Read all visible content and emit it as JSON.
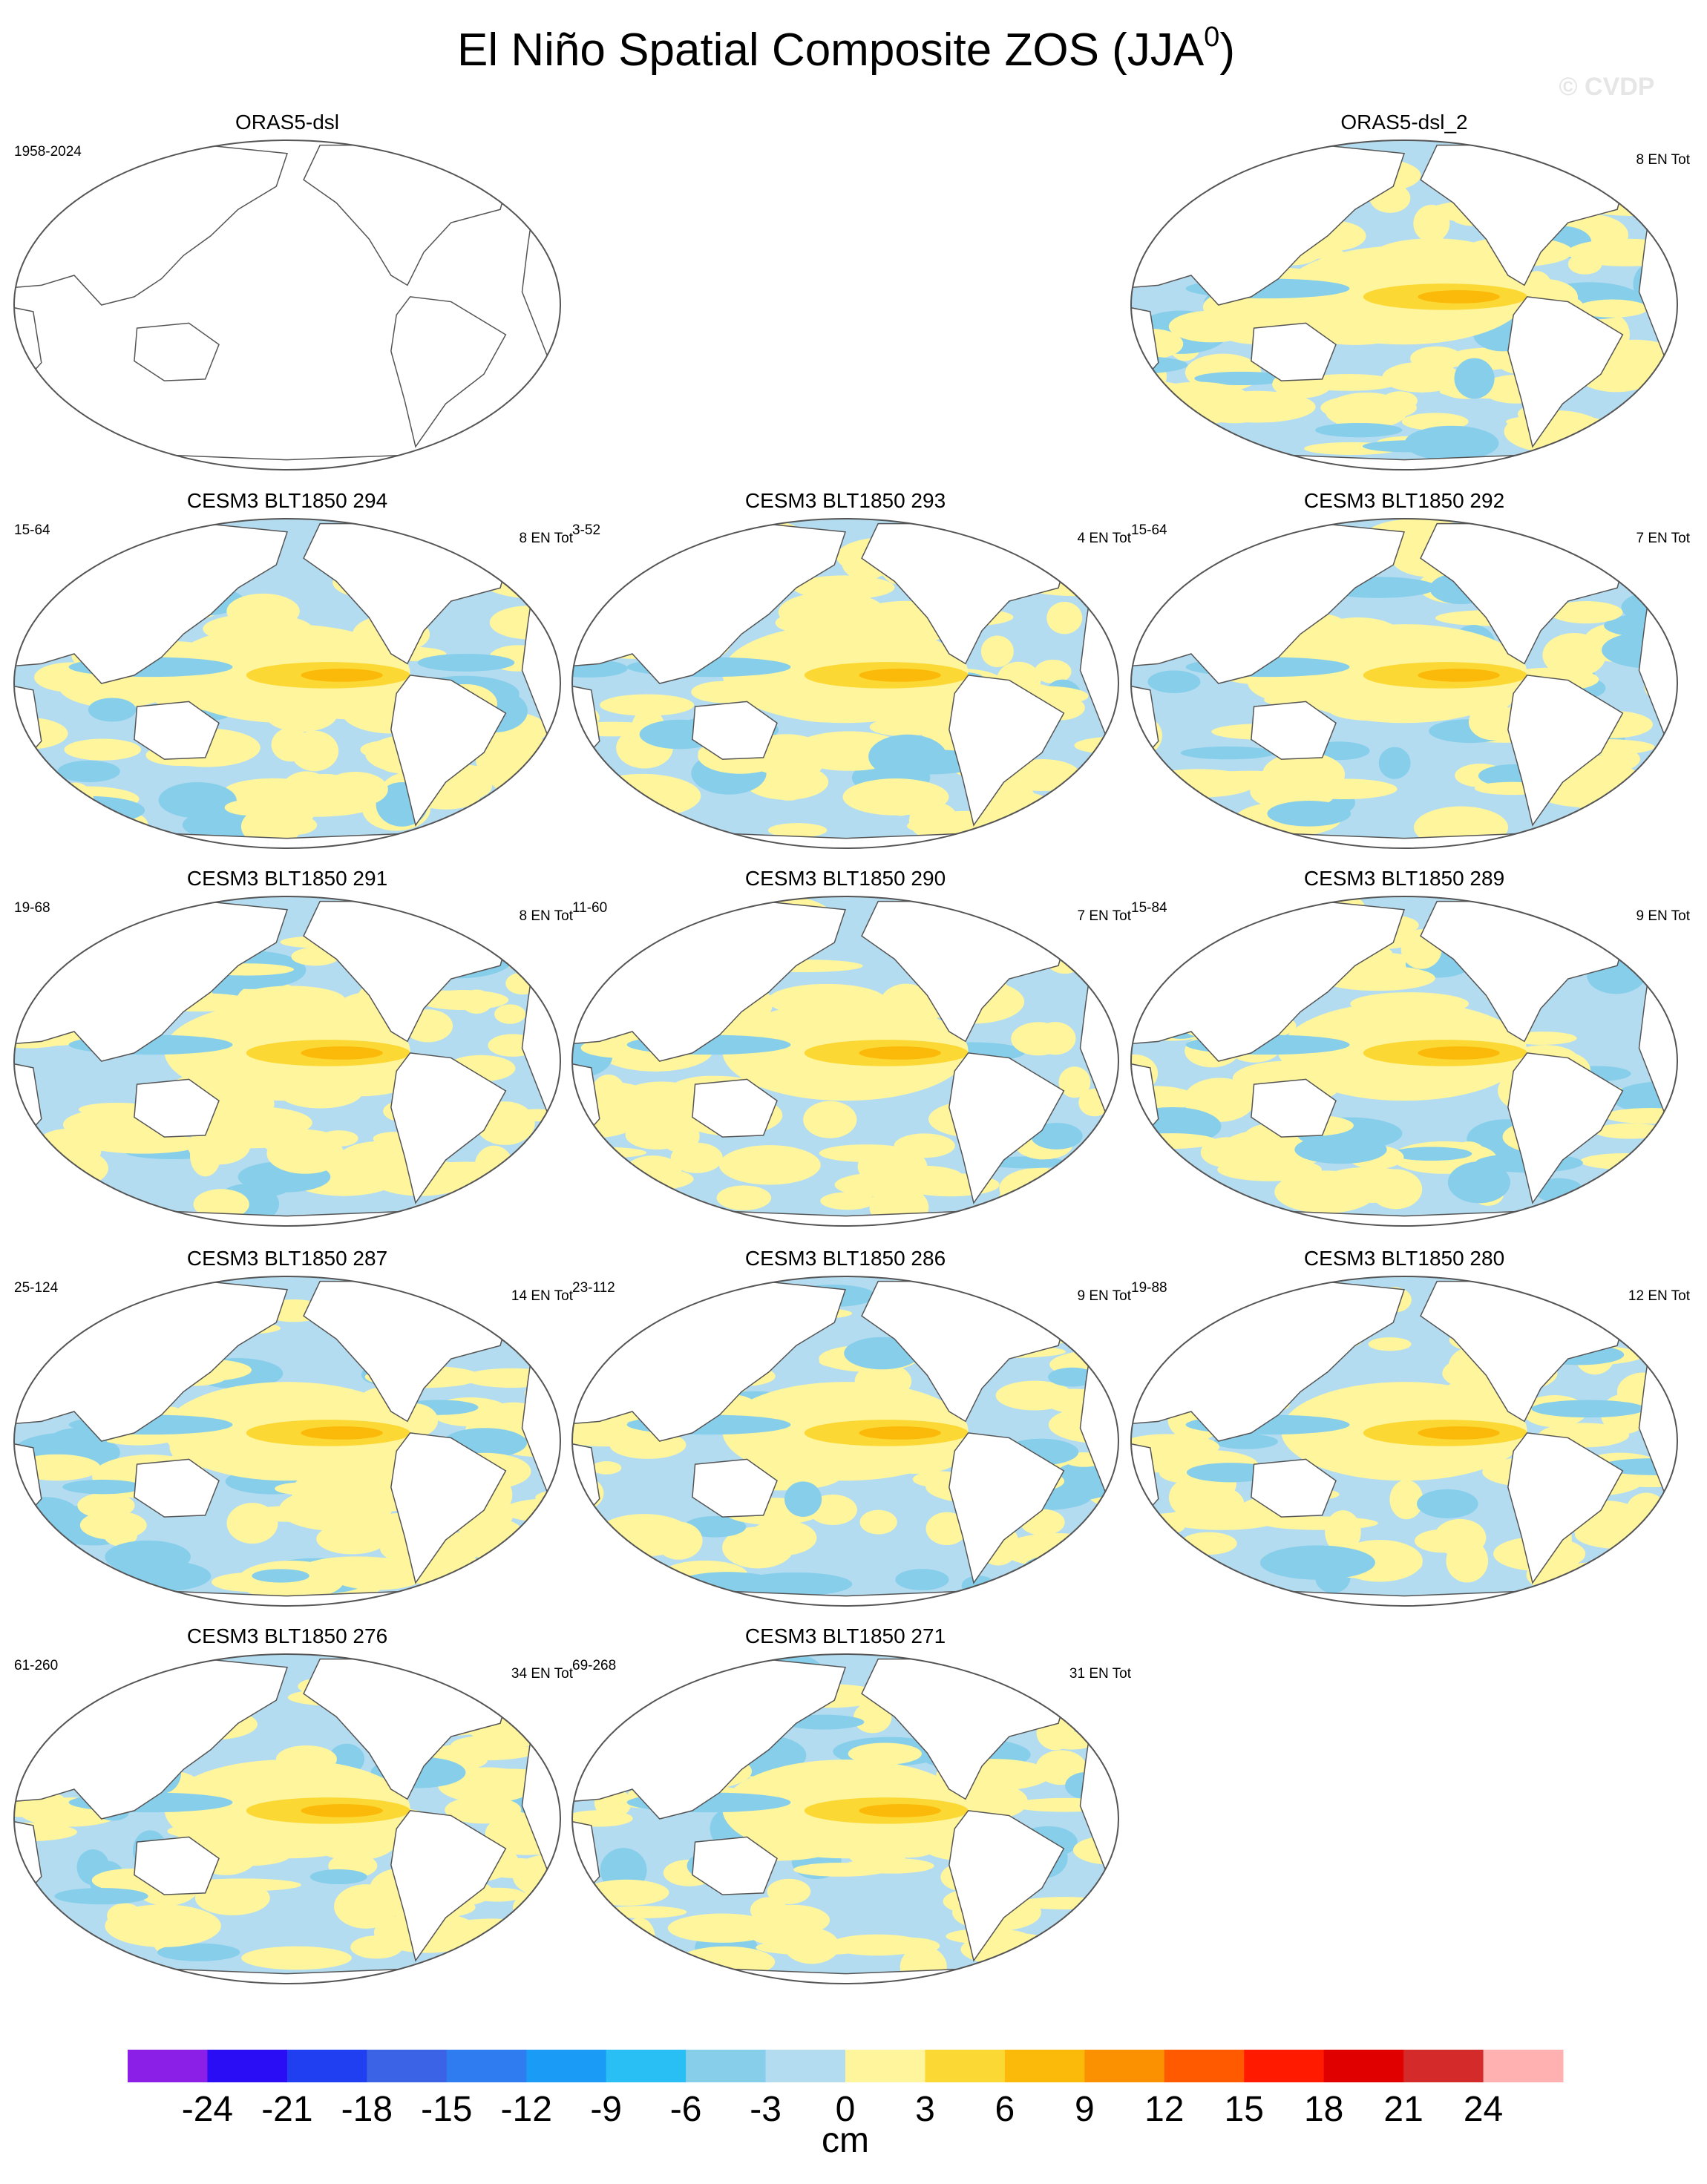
{
  "title": {
    "text": "El Niño Spatial Composite ZOS (JJA",
    "superscript": "0",
    "end": ")"
  },
  "watermark": "© CVDP",
  "panels": [
    {
      "title": "ORAS5-dsl",
      "left_label": "1958-2024"
    },
    {
      "title": "ORAS5-dsl_2",
      "right_label": "8 EN Tot"
    },
    {
      "title": "CESM3 BLT1850 294",
      "left_label": "15-64",
      "right_label": "8 EN Tot"
    },
    {
      "title": "CESM3 BLT1850 293",
      "left_label": "3-52",
      "right_label": "4 EN Tot"
    },
    {
      "title": "CESM3 BLT1850 292",
      "left_label": "15-64",
      "right_label": "7 EN Tot"
    },
    {
      "title": "CESM3 BLT1850 291",
      "left_label": "19-68",
      "right_label": "8 EN Tot"
    },
    {
      "title": "CESM3 BLT1850 290",
      "left_label": "11-60",
      "right_label": "7 EN Tot"
    },
    {
      "title": "CESM3 BLT1850 289",
      "left_label": "15-84",
      "right_label": "9 EN Tot"
    },
    {
      "title": "CESM3 BLT1850 287",
      "left_label": "25-124",
      "right_label": "14 EN Tot"
    },
    {
      "title": "CESM3 BLT1850 286",
      "left_label": "23-112",
      "right_label": "9 EN Tot"
    },
    {
      "title": "CESM3 BLT1850 280",
      "left_label": "19-88",
      "right_label": "12 EN Tot"
    },
    {
      "title": "CESM3 BLT1850 276",
      "left_label": "61-260",
      "right_label": "34 EN Tot"
    },
    {
      "title": "CESM3 BLT1850 271",
      "left_label": "69-268",
      "right_label": "31 EN Tot"
    }
  ],
  "colorbar": {
    "colors": [
      "#8b1fe8",
      "#2a0cf5",
      "#1f3ff0",
      "#3a63e6",
      "#2f7bf0",
      "#1a9bf5",
      "#29bff5",
      "#87ceeb",
      "#b4dcf0",
      "#fff59d",
      "#fcd835",
      "#fbb90a",
      "#fb9000",
      "#ff5a00",
      "#ff1a00",
      "#e00000",
      "#d42a2a",
      "#ffb0b0"
    ],
    "ticks": [
      -24,
      -21,
      -18,
      -15,
      -12,
      -9,
      -6,
      -3,
      0,
      3,
      6,
      9,
      12,
      15,
      18,
      21,
      24
    ],
    "label": "cm"
  }
}
